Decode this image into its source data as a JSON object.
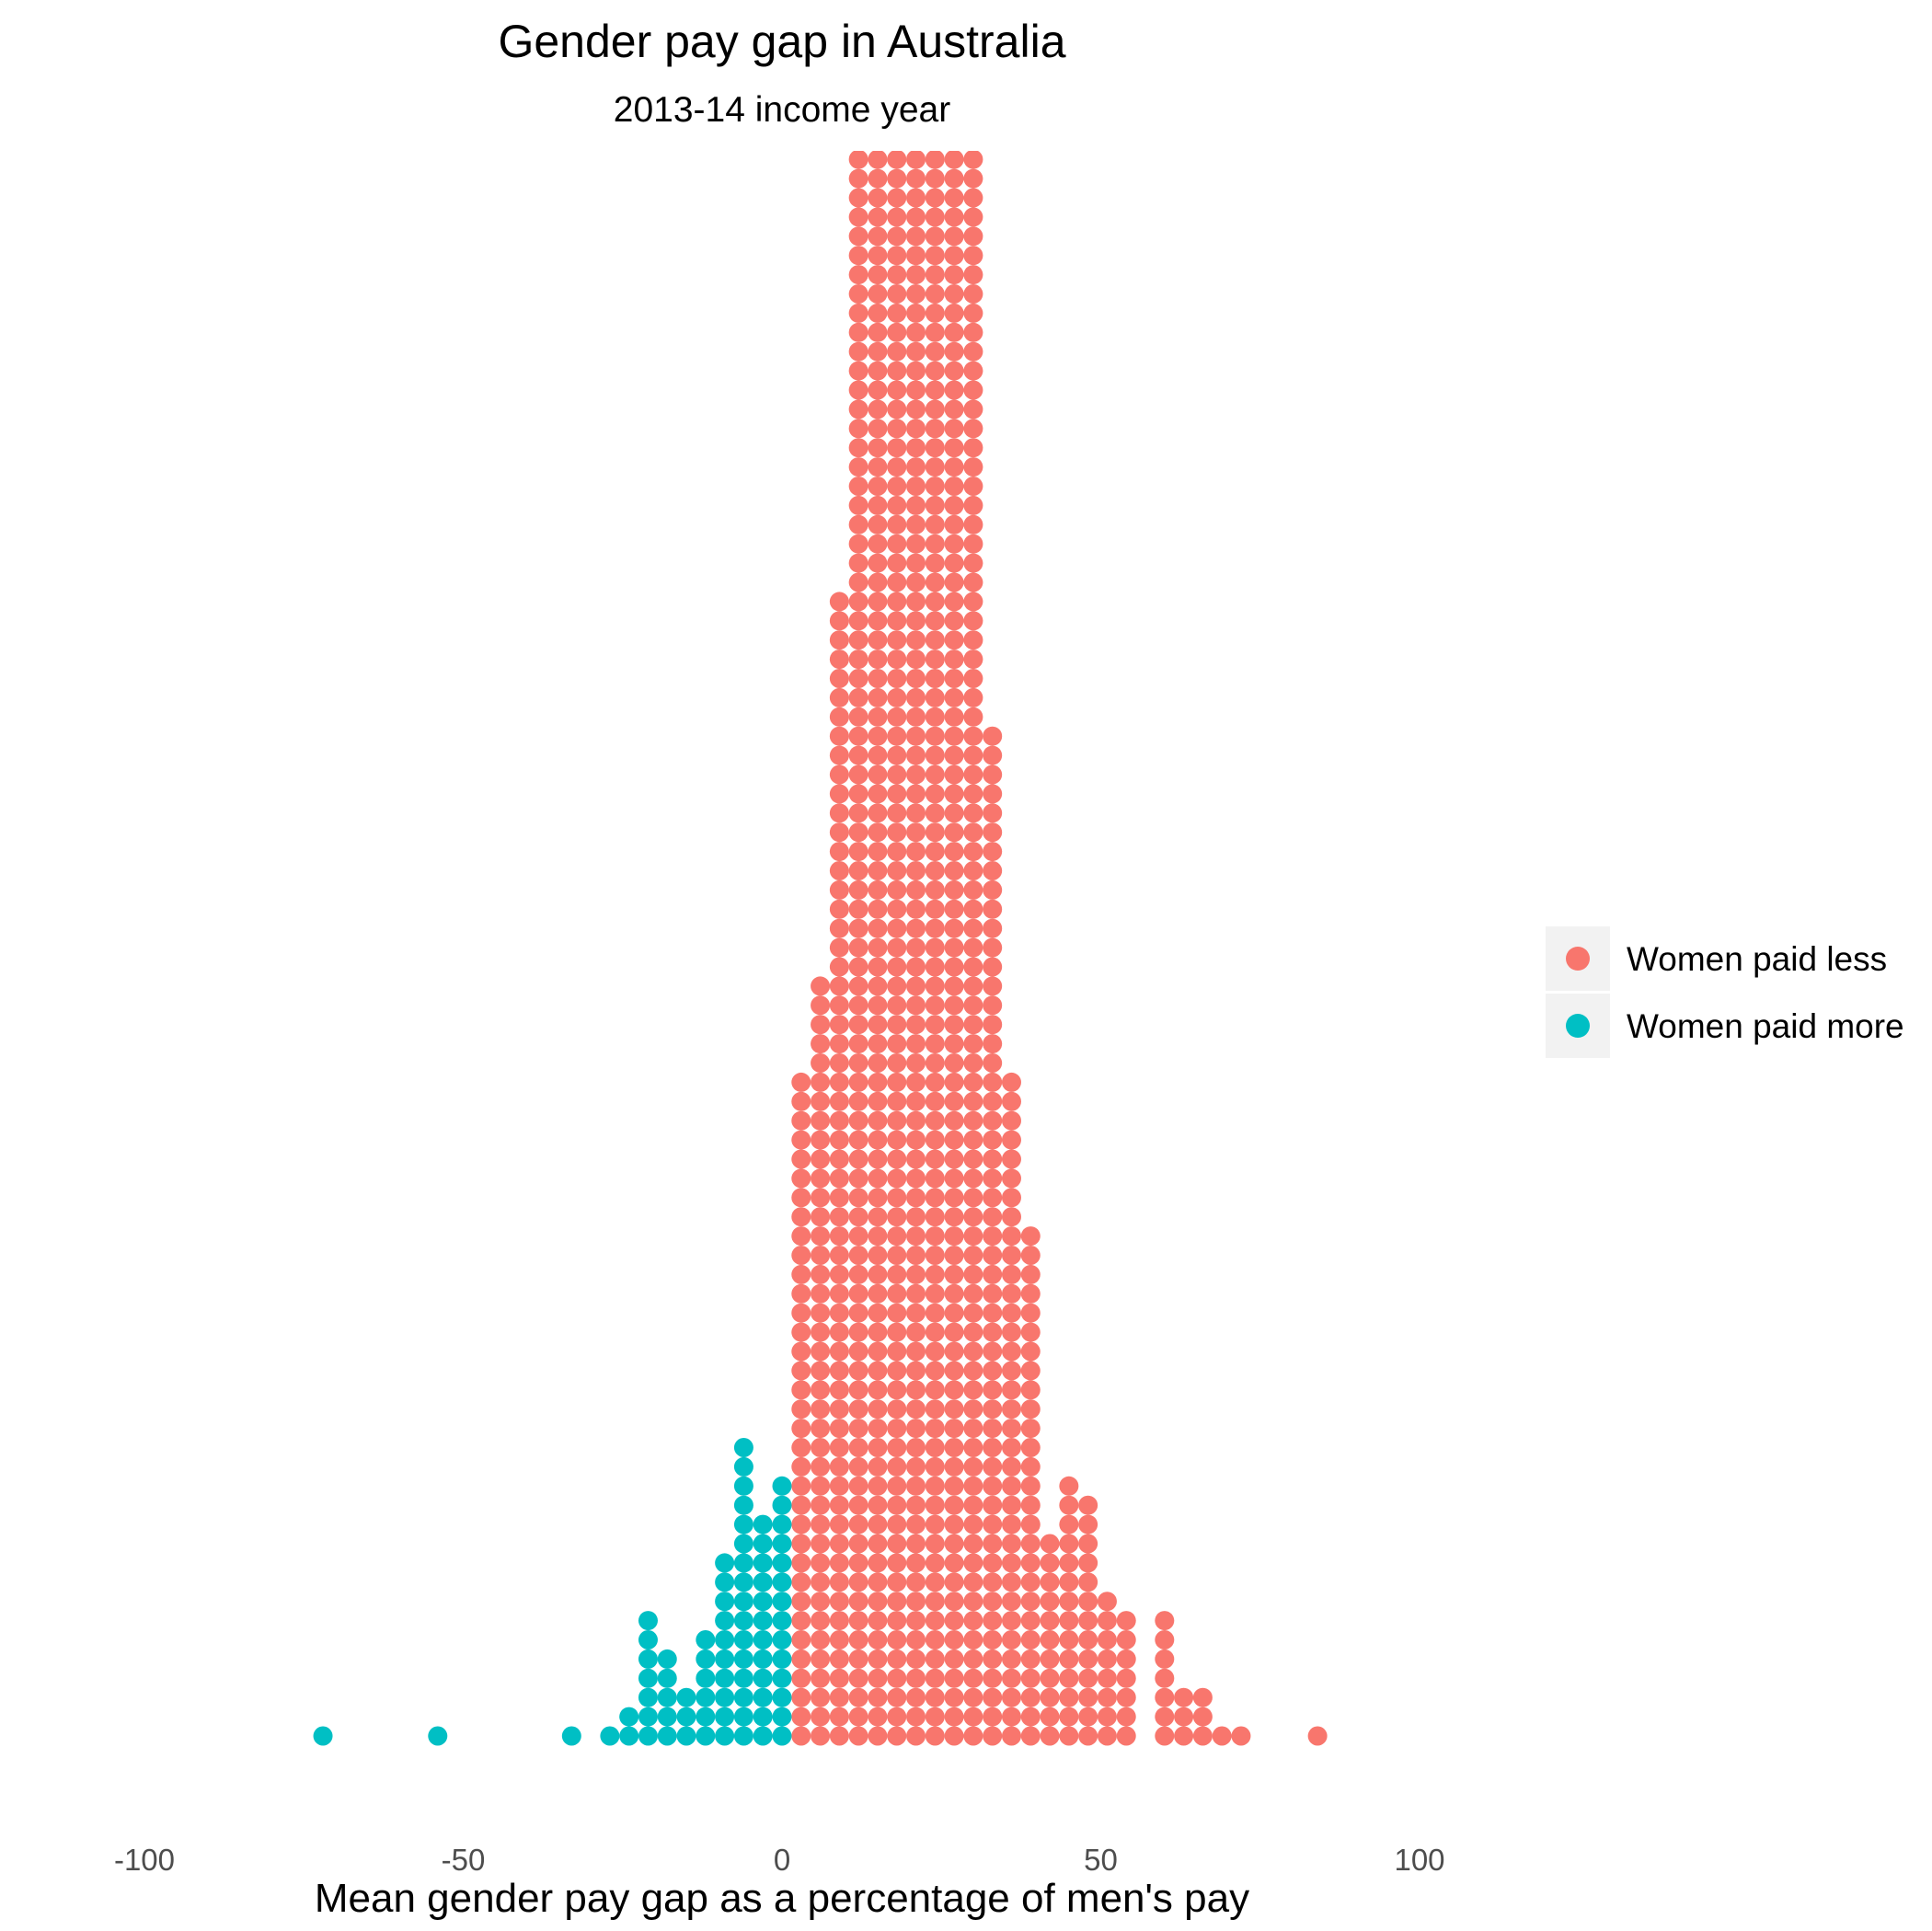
{
  "chart_data": {
    "type": "dotplot",
    "title": "Gender pay gap in Australia",
    "subtitle": "2013-14 income year",
    "xlabel": "Mean gender pay gap as a percentage of men's pay",
    "xlim": [
      -100,
      100
    ],
    "xticks": [
      "-100",
      "-50",
      "0",
      "50",
      "100"
    ],
    "xtick_values": [
      -100,
      -50,
      0,
      50,
      100
    ],
    "grid": false,
    "legend_position": "right",
    "series": [
      {
        "name": "Women paid less",
        "color": "#F8766D",
        "x": [
          3,
          6,
          9,
          12,
          15,
          18,
          21,
          24,
          27,
          30,
          33,
          36,
          39,
          42,
          45,
          48,
          51,
          54,
          60,
          63,
          66,
          69,
          72,
          84
        ],
        "counts": [
          35,
          40,
          60,
          85,
          85,
          85,
          85,
          85,
          85,
          83,
          53,
          35,
          27,
          11,
          14,
          13,
          8,
          7,
          7,
          3,
          3,
          1,
          1,
          1
        ]
      },
      {
        "name": "Women paid more",
        "color": "#00BFC4",
        "x": [
          -72,
          -54,
          -33,
          -27,
          -24,
          -21,
          -18,
          -15,
          -12,
          -9,
          -6,
          -3,
          0
        ],
        "counts": [
          1,
          1,
          1,
          1,
          2,
          7,
          5,
          3,
          6,
          10,
          16,
          12,
          14
        ]
      }
    ]
  }
}
